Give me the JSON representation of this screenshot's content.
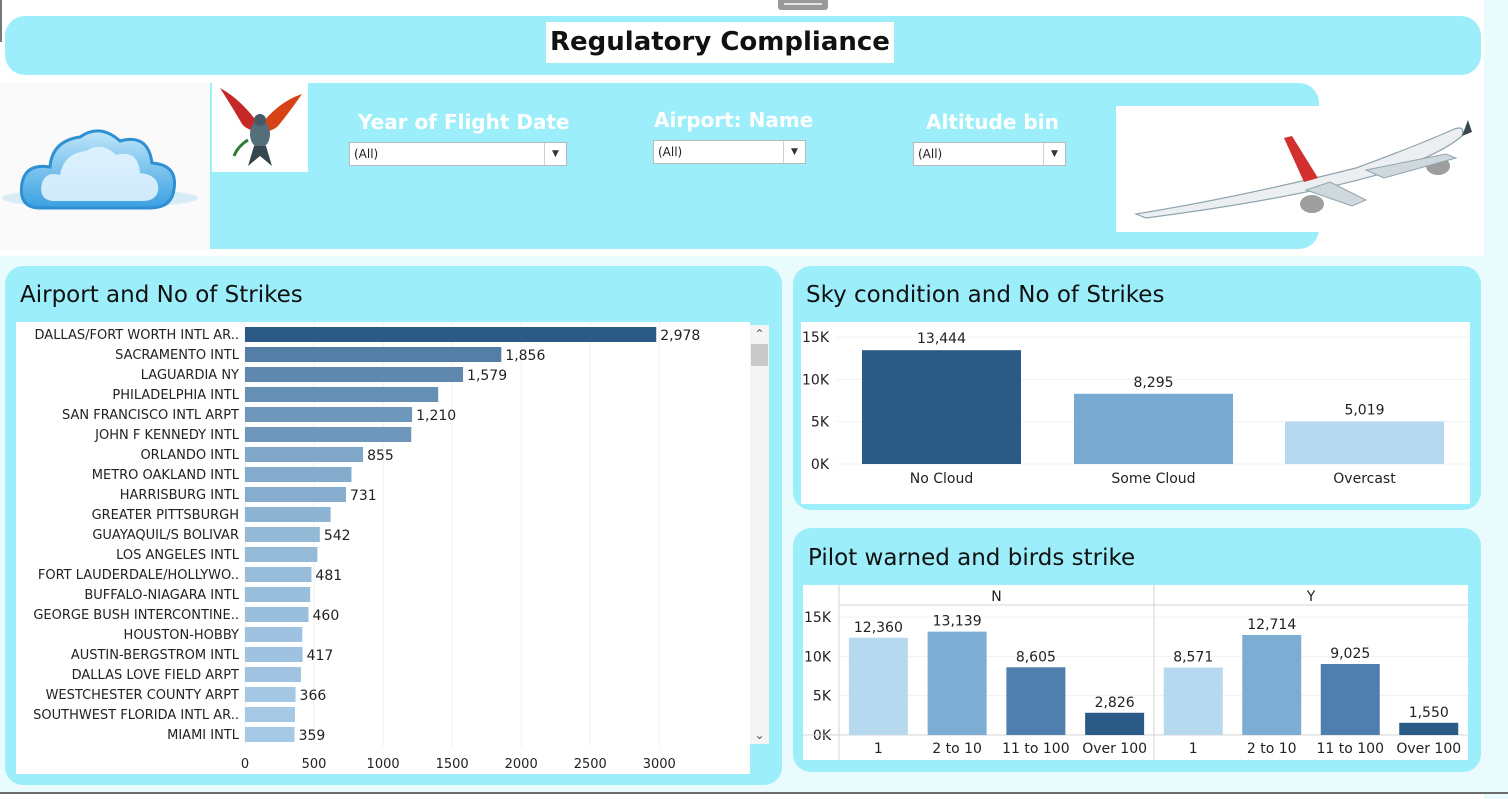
{
  "title": "Regulatory Compliance",
  "filters": [
    {
      "label": "Year of Flight Date",
      "value": "(All)"
    },
    {
      "label": "Airport: Name",
      "value": "(All)"
    },
    {
      "label": "Altitude bin",
      "value": "(All)"
    }
  ],
  "images": {
    "left": "cloud-icon",
    "bird": "bird-icon",
    "plane": "airplane-icon"
  },
  "colors": {
    "panel": "#9ceefb",
    "dark_bar": "#2c5a87",
    "mid_bar": "#5c8cba",
    "light_bar": "#a6cae6"
  },
  "panels": {
    "airport_title": "Airport and No of Strikes",
    "sky_title": "Sky condition and No of Strikes",
    "pilot_title": "Pilot warned and birds strike"
  },
  "chart_data": [
    {
      "type": "bar",
      "orientation": "horizontal",
      "title": "Airport and No of Strikes",
      "categories": [
        "DALLAS/FORT WORTH INTL AR..",
        "SACRAMENTO INTL",
        "LAGUARDIA NY",
        "PHILADELPHIA INTL",
        "SAN FRANCISCO INTL ARPT",
        "JOHN F KENNEDY INTL",
        "ORLANDO INTL",
        "METRO OAKLAND INTL",
        "HARRISBURG INTL",
        "GREATER PITTSBURGH",
        "GUAYAQUIL/S BOLIVAR",
        "LOS ANGELES INTL",
        "FORT LAUDERDALE/HOLLYWO..",
        "BUFFALO-NIAGARA INTL",
        "GEORGE BUSH INTERCONTINE..",
        "HOUSTON-HOBBY",
        "AUSTIN-BERGSTROM INTL",
        "DALLAS LOVE FIELD ARPT",
        "WESTCHESTER COUNTY ARPT",
        "SOUTHWEST FLORIDA INTL AR..",
        "MIAMI INTL"
      ],
      "values": [
        2978,
        1856,
        1579,
        1399,
        1210,
        1204,
        855,
        771,
        731,
        620,
        542,
        524,
        481,
        472,
        460,
        415,
        417,
        405,
        366,
        362,
        359
      ],
      "value_labels": [
        "2,978",
        "1,856",
        "1,579",
        "",
        "1,210",
        "",
        "855",
        "",
        "731",
        "",
        "542",
        "",
        "481",
        "",
        "460",
        "",
        "417",
        "",
        "366",
        "",
        "359"
      ],
      "xticks": [
        "0",
        "500",
        "1000",
        "1500",
        "2000",
        "2500",
        "3000"
      ],
      "xlim": [
        0,
        3150
      ]
    },
    {
      "type": "bar",
      "title": "Sky condition and No of Strikes",
      "categories": [
        "No Cloud",
        "Some Cloud",
        "Overcast"
      ],
      "values": [
        13444,
        8295,
        5019
      ],
      "value_labels": [
        "13,444",
        "8,295",
        "5,019"
      ],
      "yticks": [
        "15K",
        "10K",
        "5K",
        "0K"
      ],
      "ylim": [
        0,
        15000
      ]
    },
    {
      "type": "bar",
      "title": "Pilot warned and birds strike",
      "categories": [
        "1",
        "2 to 10",
        "11 to 100",
        "Over 100"
      ],
      "series": [
        {
          "name": "N",
          "values": [
            12360,
            13139,
            8605,
            2826
          ],
          "value_labels": [
            "12,360",
            "13,139",
            "8,605",
            "2,826"
          ]
        },
        {
          "name": "Y",
          "values": [
            8571,
            12714,
            9025,
            1550
          ],
          "value_labels": [
            "8,571",
            "12,714",
            "9,025",
            "1,550"
          ]
        }
      ],
      "yticks": [
        "15K",
        "10K",
        "5K",
        "0K"
      ],
      "ylim": [
        0,
        15000
      ]
    }
  ]
}
